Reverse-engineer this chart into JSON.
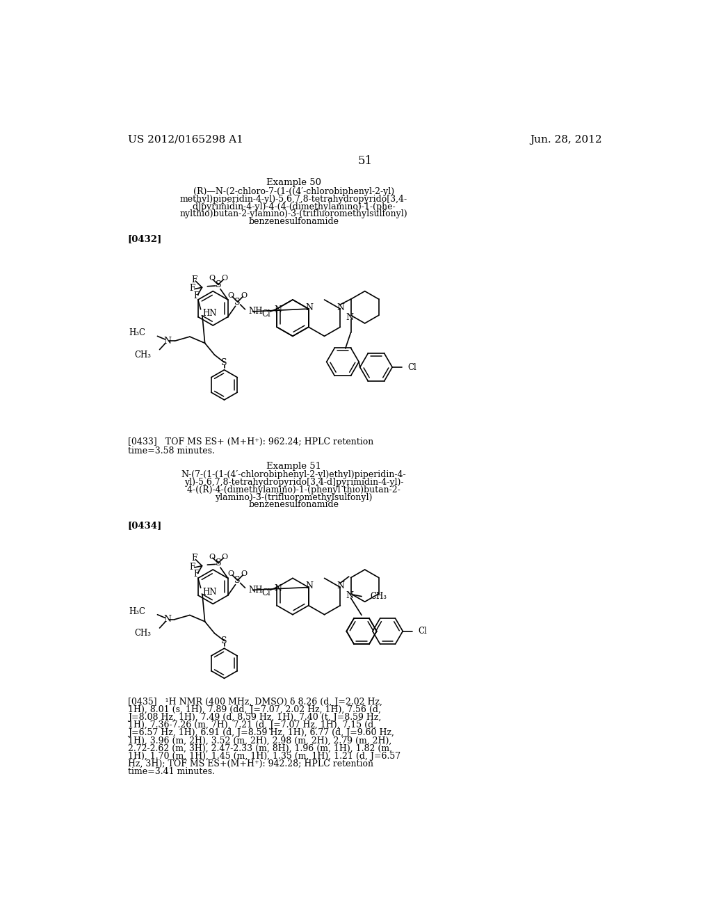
{
  "background_color": "#ffffff",
  "header_left": "US 2012/0165298 A1",
  "header_right": "Jun. 28, 2012",
  "page_number": "51",
  "example50_title": "Example 50",
  "example50_line1": "(R)—N-(2-chloro-7-(1-((4′-chlorobiphenyl-2-yl)",
  "example50_line2": "methyl)piperidin-4-yl)-5,6,7,8-tetrahydropyrido[3,4-",
  "example50_line3": "d]pyrimidin-4-yl)-4-(4-(dimethylamino)-1-(phe-",
  "example50_line4": "nylthio)butan-2-ylamino)-3-(trifluoromethylsulfonyl)",
  "example50_line5": "benzenesulfonamide",
  "ref0432": "[0432]",
  "ref0433_line1": "[0433]   TOF MS ES+ (M+H⁺): 962.24; HPLC retention",
  "ref0433_line2": "time=3.58 minutes.",
  "example51_title": "Example 51",
  "example51_line1": "N-(7-(1-(1-(4′-chlorobiphenyl-2-yl)ethyl)piperidin-4-",
  "example51_line2": "yl)-5,6,7,8-tetrahydropyrido[3,4-d]pyrimidin-4-yl)-",
  "example51_line3": "4-((R)-4-(dimethylamino)-1-(phenyl thio)butan-2-",
  "example51_line4": "ylamino)-3-(trifluoromethylsulfonyl)",
  "example51_line5": "benzenesulfonamide",
  "ref0434": "[0434]",
  "ref0435_line1": "[0435]   ¹H NMR (400 MHz, DMSO) δ 8.26 (d, J=2.02 Hz,",
  "ref0435_line2": "1H), 8.01 (s, 1H), 7.89 (dd, J=7.07, 2.02 Hz, 1H), 7.56 (d,",
  "ref0435_line3": "J=8.08 Hz, 1H), 7.49 (d, 8.59 Hz, 1H), 7.40 (t, J=8.59 Hz,",
  "ref0435_line4": "1H), 7.36-7.26 (m, 7H), 7.21 (d, J=7.07 Hz, 1H), 7.15 (d,",
  "ref0435_line5": "J=6.57 Hz, 1H), 6.91 (d, J=8.59 Hz, 1H), 6.77 (d, J=9.60 Hz,",
  "ref0435_line6": "1H), 3.96 (m, 2H), 3.52 (m, 2H), 2.98 (m, 2H), 2.79 (m, 2H),",
  "ref0435_line7": "2.72-2.62 (m, 3H), 2.47-2.33 (m, 8H), 1.96 (m, 1H), 1.82 (m,",
  "ref0435_line8": "1H), 1.70 (m, 1H), 1.45 (m, 1H), 1.35 (m, 1H), 1.21 (d, J=6.57",
  "ref0435_line9": "Hz, 3H); TOF MS ES+(M+H⁺): 942.28; HPLC retention",
  "ref0435_line10": "time=3.41 minutes.",
  "text_color": "#000000"
}
